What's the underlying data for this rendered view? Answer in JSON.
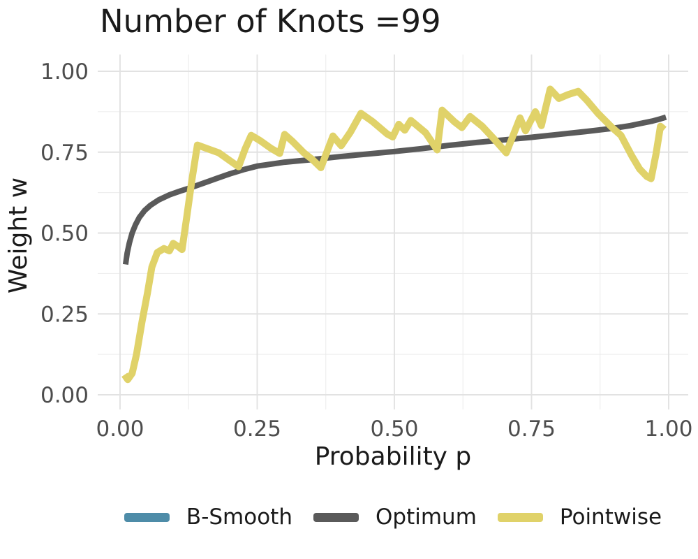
{
  "chart_data": {
    "type": "line",
    "title": "Number of Knots =99",
    "xlabel": "Probability p",
    "ylabel": "Weight w",
    "xlim": [
      0,
      1
    ],
    "ylim": [
      0,
      1
    ],
    "grid": true,
    "legend_position": "bottom",
    "x_ticks": {
      "values": [
        0.0,
        0.25,
        0.5,
        0.75,
        1.0
      ],
      "labels": [
        "0.00",
        "0.25",
        "0.50",
        "0.75",
        "1.00"
      ],
      "minor": [
        0.125,
        0.375,
        0.625,
        0.875
      ]
    },
    "y_ticks": {
      "values": [
        0.0,
        0.25,
        0.5,
        0.75,
        1.0
      ],
      "labels": [
        "0.00",
        "0.25",
        "0.50",
        "0.75",
        "1.00"
      ],
      "minor": [
        0.125,
        0.375,
        0.625,
        0.875
      ]
    },
    "series": [
      {
        "name": "B-Smooth",
        "color": "#4E8CA8",
        "stroke_width": 8,
        "visible_in_plot": false,
        "points": []
      },
      {
        "name": "Optimum",
        "color": "#5A5A5A",
        "stroke_width": 8,
        "visible_in_plot": true,
        "points": [
          [
            0.01,
            0.403
          ],
          [
            0.013,
            0.438
          ],
          [
            0.017,
            0.47
          ],
          [
            0.022,
            0.5
          ],
          [
            0.028,
            0.525
          ],
          [
            0.035,
            0.548
          ],
          [
            0.045,
            0.57
          ],
          [
            0.055,
            0.585
          ],
          [
            0.07,
            0.602
          ],
          [
            0.09,
            0.618
          ],
          [
            0.11,
            0.63
          ],
          [
            0.125,
            0.638
          ],
          [
            0.15,
            0.653
          ],
          [
            0.175,
            0.668
          ],
          [
            0.2,
            0.683
          ],
          [
            0.225,
            0.696
          ],
          [
            0.25,
            0.707
          ],
          [
            0.3,
            0.719
          ],
          [
            0.35,
            0.727
          ],
          [
            0.4,
            0.736
          ],
          [
            0.45,
            0.744
          ],
          [
            0.5,
            0.752
          ],
          [
            0.55,
            0.761
          ],
          [
            0.6,
            0.771
          ],
          [
            0.65,
            0.78
          ],
          [
            0.7,
            0.788
          ],
          [
            0.75,
            0.796
          ],
          [
            0.8,
            0.805
          ],
          [
            0.85,
            0.814
          ],
          [
            0.875,
            0.819
          ],
          [
            0.9,
            0.824
          ],
          [
            0.93,
            0.832
          ],
          [
            0.95,
            0.839
          ],
          [
            0.97,
            0.846
          ],
          [
            0.985,
            0.853
          ],
          [
            0.995,
            0.858
          ]
        ]
      },
      {
        "name": "Pointwise",
        "color": "#E0D269",
        "stroke_width": 10,
        "visible_in_plot": true,
        "points": [
          [
            0.008,
            0.062
          ],
          [
            0.014,
            0.047
          ],
          [
            0.022,
            0.066
          ],
          [
            0.03,
            0.125
          ],
          [
            0.04,
            0.225
          ],
          [
            0.05,
            0.315
          ],
          [
            0.058,
            0.395
          ],
          [
            0.068,
            0.44
          ],
          [
            0.08,
            0.452
          ],
          [
            0.09,
            0.445
          ],
          [
            0.097,
            0.468
          ],
          [
            0.106,
            0.458
          ],
          [
            0.113,
            0.449
          ],
          [
            0.122,
            0.555
          ],
          [
            0.131,
            0.665
          ],
          [
            0.141,
            0.772
          ],
          [
            0.16,
            0.76
          ],
          [
            0.18,
            0.748
          ],
          [
            0.2,
            0.724
          ],
          [
            0.216,
            0.705
          ],
          [
            0.228,
            0.76
          ],
          [
            0.239,
            0.802
          ],
          [
            0.255,
            0.786
          ],
          [
            0.275,
            0.762
          ],
          [
            0.291,
            0.746
          ],
          [
            0.3,
            0.805
          ],
          [
            0.315,
            0.782
          ],
          [
            0.335,
            0.748
          ],
          [
            0.35,
            0.728
          ],
          [
            0.366,
            0.702
          ],
          [
            0.388,
            0.8
          ],
          [
            0.403,
            0.77
          ],
          [
            0.42,
            0.812
          ],
          [
            0.439,
            0.87
          ],
          [
            0.46,
            0.845
          ],
          [
            0.487,
            0.806
          ],
          [
            0.497,
            0.797
          ],
          [
            0.508,
            0.836
          ],
          [
            0.519,
            0.818
          ],
          [
            0.53,
            0.848
          ],
          [
            0.557,
            0.81
          ],
          [
            0.578,
            0.757
          ],
          [
            0.587,
            0.88
          ],
          [
            0.61,
            0.843
          ],
          [
            0.623,
            0.826
          ],
          [
            0.638,
            0.86
          ],
          [
            0.66,
            0.83
          ],
          [
            0.682,
            0.79
          ],
          [
            0.704,
            0.748
          ],
          [
            0.729,
            0.856
          ],
          [
            0.739,
            0.816
          ],
          [
            0.757,
            0.875
          ],
          [
            0.768,
            0.832
          ],
          [
            0.784,
            0.945
          ],
          [
            0.8,
            0.916
          ],
          [
            0.817,
            0.928
          ],
          [
            0.835,
            0.938
          ],
          [
            0.851,
            0.91
          ],
          [
            0.871,
            0.87
          ],
          [
            0.897,
            0.826
          ],
          [
            0.913,
            0.802
          ],
          [
            0.933,
            0.738
          ],
          [
            0.947,
            0.698
          ],
          [
            0.96,
            0.675
          ],
          [
            0.968,
            0.668
          ],
          [
            0.977,
            0.745
          ],
          [
            0.985,
            0.83
          ],
          [
            0.992,
            0.82
          ]
        ]
      }
    ]
  }
}
